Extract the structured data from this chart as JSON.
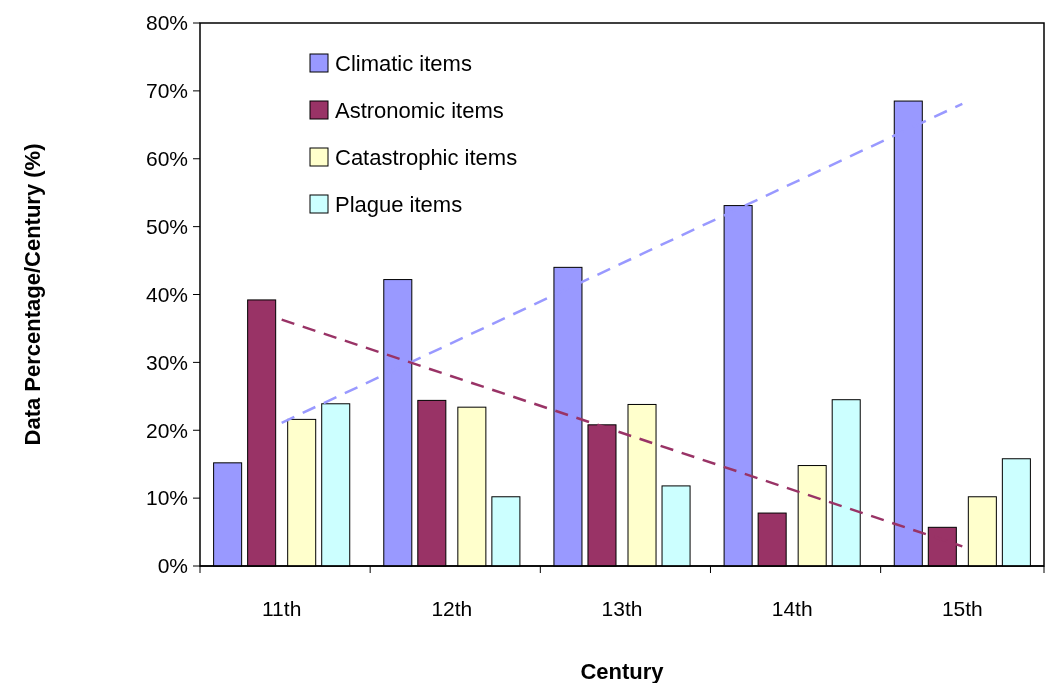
{
  "chart_data": {
    "type": "bar",
    "xlabel": "Century",
    "ylabel": "Data Percentage/Century (%)",
    "categories": [
      "11th",
      "12th",
      "13th",
      "14th",
      "15th"
    ],
    "series": [
      {
        "name": "Climatic items",
        "color": "#9999ff",
        "values": [
          15.2,
          42.2,
          44.0,
          53.1,
          68.5
        ]
      },
      {
        "name": "Astronomic items",
        "color": "#993366",
        "values": [
          39.2,
          24.4,
          20.8,
          7.8,
          5.7
        ]
      },
      {
        "name": "Catastrophic items",
        "color": "#ffffcc",
        "values": [
          21.6,
          23.4,
          23.8,
          14.8,
          10.2
        ]
      },
      {
        "name": "Plague items",
        "color": "#ccffff",
        "values": [
          23.9,
          10.2,
          11.8,
          24.5,
          15.8
        ]
      },
      {
        "type": "line",
        "color": "#9999ff",
        "line_style": "dashed",
        "x": [
          "11th",
          "15th"
        ],
        "values": [
          21.1,
          68.1
        ]
      },
      {
        "type": "line",
        "color": "#993366",
        "line_style": "dashed",
        "x": [
          "11th",
          "15th"
        ],
        "values": [
          36.3,
          2.9
        ]
      }
    ],
    "ylim": [
      0,
      80
    ],
    "yticks": [
      {
        "value": 0,
        "label": "0%"
      },
      {
        "value": 10,
        "label": "10%"
      },
      {
        "value": 20,
        "label": "20%"
      },
      {
        "value": 30,
        "label": "30%"
      },
      {
        "value": 40,
        "label": "40%"
      },
      {
        "value": 50,
        "label": "50%"
      },
      {
        "value": 60,
        "label": "60%"
      },
      {
        "value": 70,
        "label": "70%"
      },
      {
        "value": 80,
        "label": "80%"
      }
    ],
    "grid": false,
    "legend": "top left"
  }
}
